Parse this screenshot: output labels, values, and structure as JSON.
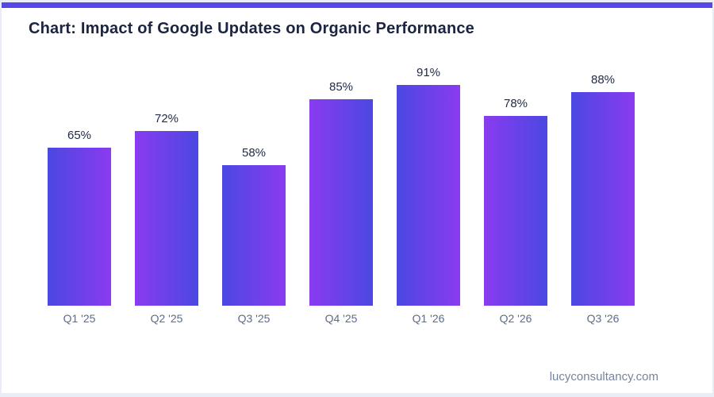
{
  "page": {
    "title": "Chart: Impact of Google Updates on Organic Performance",
    "footer": "lucyconsultancy.com"
  },
  "theme": {
    "accent_bar_color": "#5847e8",
    "bar_gradient_blue": "#4b48e1",
    "bar_gradient_purple": "#8a3bf0",
    "title_color": "#1b2440",
    "value_label_color": "#222b46",
    "category_label_color": "#5d6c88",
    "footer_color": "#76839e",
    "frame_color": "#e9eef6",
    "card_background": "#ffffff"
  },
  "chart_data": {
    "type": "bar",
    "title": "Chart: Impact of Google Updates on Organic Performance",
    "categories": [
      "Q1 '25",
      "Q2 '25",
      "Q3 '25",
      "Q4 '25",
      "Q1 '26",
      "Q2 '26",
      "Q3 '26"
    ],
    "values": [
      65,
      72,
      58,
      85,
      91,
      78,
      88
    ],
    "value_labels": [
      "65%",
      "72%",
      "58%",
      "85%",
      "91%",
      "78%",
      "88%"
    ],
    "xlabel": "",
    "ylabel": "",
    "ylim": [
      0,
      100
    ],
    "grid": false,
    "legend": "none",
    "axes_visible": false,
    "bar_style": "alternating horizontal blue-to-purple gradient per bar"
  }
}
